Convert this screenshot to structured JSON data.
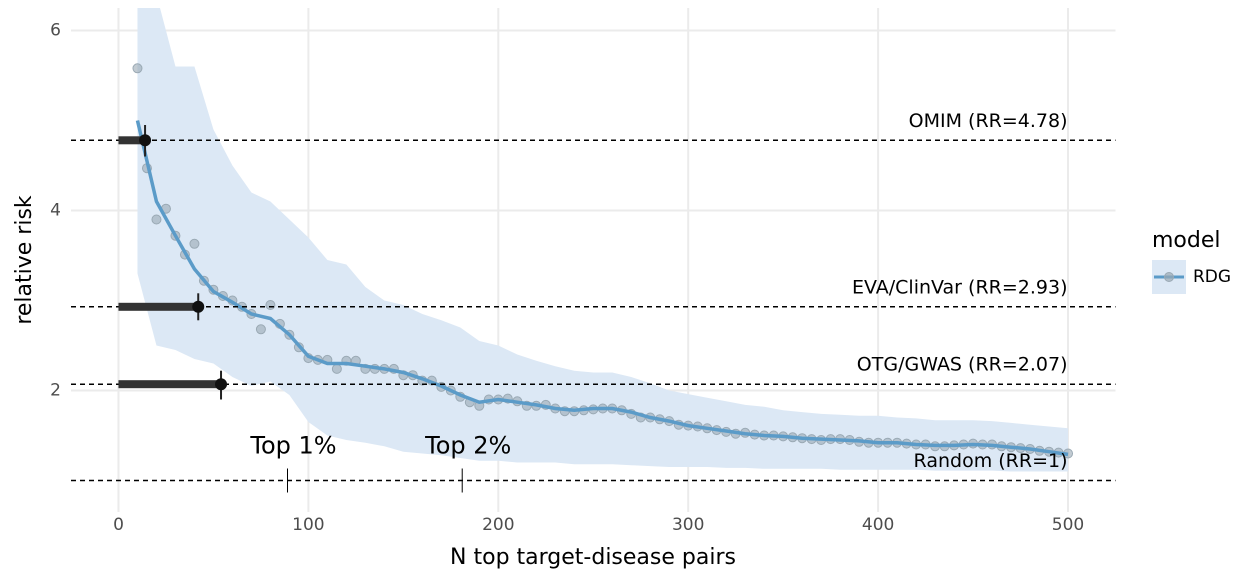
{
  "chart_data": {
    "type": "line",
    "xlabel": "N top target-disease pairs",
    "ylabel": "relative risk",
    "xlim": [
      -25,
      525
    ],
    "ylim": [
      0.65,
      6.25
    ],
    "xticks": [
      0,
      100,
      200,
      300,
      400,
      500
    ],
    "yticks": [
      2,
      4,
      6
    ],
    "grid": true,
    "legend": {
      "title": "model",
      "position": "right"
    },
    "series": [
      {
        "name": "RDG",
        "color": "#5b9bc8",
        "ribbon_color": "#dce8f5",
        "point_color": "#9aa9b4",
        "x": [
          10,
          20,
          30,
          40,
          50,
          60,
          70,
          80,
          90,
          100,
          110,
          120,
          130,
          140,
          150,
          160,
          170,
          180,
          190,
          200,
          210,
          220,
          230,
          240,
          250,
          260,
          270,
          280,
          290,
          300,
          310,
          320,
          330,
          340,
          350,
          360,
          370,
          380,
          390,
          400,
          410,
          420,
          430,
          440,
          450,
          460,
          470,
          480,
          490,
          500
        ],
        "values": [
          5.0,
          4.1,
          3.72,
          3.35,
          3.1,
          2.98,
          2.85,
          2.8,
          2.62,
          2.38,
          2.3,
          2.3,
          2.27,
          2.24,
          2.2,
          2.13,
          2.05,
          1.95,
          1.87,
          1.9,
          1.87,
          1.84,
          1.8,
          1.78,
          1.8,
          1.8,
          1.76,
          1.7,
          1.66,
          1.61,
          1.58,
          1.55,
          1.52,
          1.5,
          1.49,
          1.47,
          1.46,
          1.45,
          1.44,
          1.42,
          1.42,
          1.4,
          1.39,
          1.39,
          1.4,
          1.39,
          1.37,
          1.35,
          1.32,
          1.29
        ],
        "upper": [
          6.6,
          6.4,
          5.6,
          5.6,
          4.9,
          4.5,
          4.2,
          4.1,
          3.9,
          3.7,
          3.45,
          3.4,
          3.15,
          3.0,
          2.95,
          2.85,
          2.78,
          2.7,
          2.55,
          2.5,
          2.4,
          2.33,
          2.27,
          2.22,
          2.2,
          2.2,
          2.15,
          2.08,
          2.0,
          1.96,
          1.92,
          1.88,
          1.84,
          1.82,
          1.78,
          1.76,
          1.74,
          1.73,
          1.72,
          1.72,
          1.7,
          1.69,
          1.67,
          1.67,
          1.67,
          1.66,
          1.64,
          1.62,
          1.6,
          1.58
        ],
        "lower": [
          3.3,
          2.5,
          2.45,
          2.35,
          2.3,
          2.15,
          2.05,
          2.1,
          1.95,
          1.65,
          1.5,
          1.45,
          1.42,
          1.38,
          1.32,
          1.3,
          1.28,
          1.25,
          1.22,
          1.22,
          1.2,
          1.2,
          1.2,
          1.18,
          1.18,
          1.18,
          1.17,
          1.16,
          1.15,
          1.15,
          1.15,
          1.14,
          1.14,
          1.13,
          1.13,
          1.13,
          1.13,
          1.12,
          1.12,
          1.12,
          1.12,
          1.12,
          1.11,
          1.11,
          1.11,
          1.11,
          1.1,
          1.1,
          1.1,
          1.1
        ],
        "points": {
          "x": [
            10,
            15,
            20,
            25,
            30,
            35,
            40,
            45,
            50,
            55,
            60,
            65,
            70,
            75,
            80,
            85,
            90,
            95,
            100,
            105,
            110,
            115,
            120,
            125,
            130,
            135,
            140,
            145,
            150,
            155,
            160,
            165,
            170,
            175,
            180,
            185,
            190,
            195,
            200,
            205,
            210,
            215,
            220,
            225,
            230,
            235,
            240,
            245,
            250,
            255,
            260,
            265,
            270,
            275,
            280,
            285,
            290,
            295,
            300,
            305,
            310,
            315,
            320,
            325,
            330,
            335,
            340,
            345,
            350,
            355,
            360,
            365,
            370,
            375,
            380,
            385,
            390,
            395,
            400,
            405,
            410,
            415,
            420,
            425,
            430,
            435,
            440,
            445,
            450,
            455,
            460,
            465,
            470,
            475,
            480,
            485,
            490,
            495,
            500
          ],
          "values": [
            5.58,
            4.47,
            3.9,
            4.02,
            3.72,
            3.51,
            3.63,
            3.22,
            3.12,
            3.05,
            3.0,
            2.93,
            2.85,
            2.68,
            2.95,
            2.74,
            2.62,
            2.48,
            2.36,
            2.34,
            2.34,
            2.24,
            2.33,
            2.33,
            2.24,
            2.24,
            2.24,
            2.24,
            2.17,
            2.17,
            2.11,
            2.11,
            2.04,
            2.0,
            1.93,
            1.87,
            1.83,
            1.9,
            1.9,
            1.91,
            1.88,
            1.83,
            1.83,
            1.84,
            1.8,
            1.77,
            1.77,
            1.78,
            1.79,
            1.8,
            1.8,
            1.78,
            1.74,
            1.7,
            1.7,
            1.68,
            1.66,
            1.62,
            1.61,
            1.6,
            1.58,
            1.56,
            1.54,
            1.52,
            1.53,
            1.51,
            1.5,
            1.5,
            1.49,
            1.48,
            1.47,
            1.46,
            1.45,
            1.46,
            1.46,
            1.45,
            1.43,
            1.42,
            1.42,
            1.42,
            1.42,
            1.41,
            1.4,
            1.4,
            1.38,
            1.38,
            1.39,
            1.4,
            1.41,
            1.4,
            1.4,
            1.38,
            1.37,
            1.36,
            1.35,
            1.33,
            1.32,
            1.31,
            1.3
          ]
        }
      }
    ],
    "reference_lines": [
      {
        "label": "OMIM (RR=4.78)",
        "value": 4.78,
        "n": 14,
        "ci": [
          4.6,
          4.95
        ]
      },
      {
        "label": "EVA/ClinVar (RR=2.93)",
        "value": 2.93,
        "n": 42,
        "ci": [
          2.78,
          3.08
        ]
      },
      {
        "label": "OTG/GWAS (RR=2.07)",
        "value": 2.07,
        "n": 54,
        "ci": [
          1.9,
          2.22
        ]
      },
      {
        "label": "Random (RR=1)",
        "value": 1
      }
    ],
    "annotations": [
      {
        "label": "Top 1%",
        "x": 89
      },
      {
        "label": "Top 2%",
        "x": 181
      }
    ]
  }
}
